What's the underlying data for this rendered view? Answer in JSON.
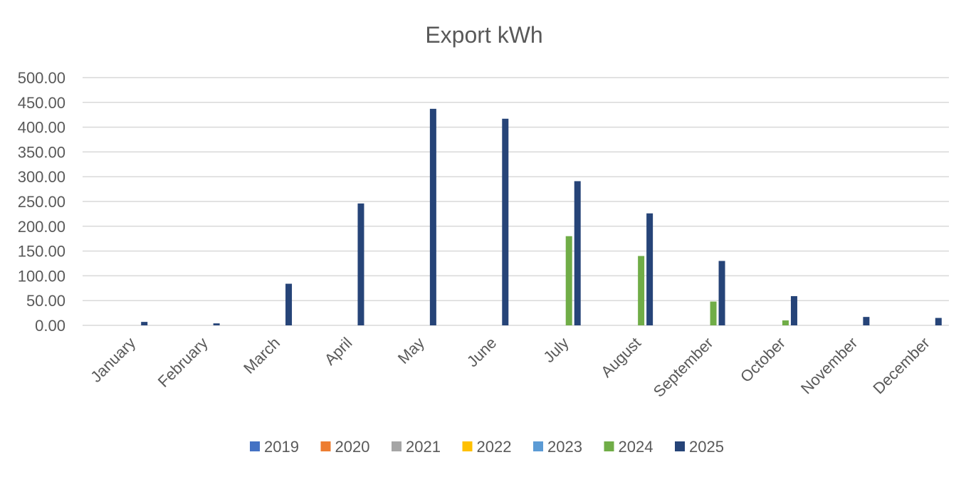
{
  "chart_data": {
    "type": "bar",
    "title": "Export kWh",
    "xlabel": "",
    "ylabel": "",
    "ylim": [
      0,
      500
    ],
    "yticks": [
      "0.00",
      "50.00",
      "100.00",
      "150.00",
      "200.00",
      "250.00",
      "300.00",
      "350.00",
      "400.00",
      "450.00",
      "500.00"
    ],
    "categories": [
      "January",
      "February",
      "March",
      "April",
      "May",
      "June",
      "July",
      "August",
      "September",
      "October",
      "November",
      "December"
    ],
    "legend_position": "bottom",
    "grid": true,
    "series": [
      {
        "name": "2019",
        "color": "#4472C4",
        "values": [
          0,
          0,
          0,
          0,
          0,
          0,
          0,
          0,
          0,
          0,
          0,
          0
        ]
      },
      {
        "name": "2020",
        "color": "#ED7D31",
        "values": [
          0,
          0,
          0,
          0,
          0,
          0,
          0,
          0,
          0,
          0,
          0,
          0
        ]
      },
      {
        "name": "2021",
        "color": "#A5A5A5",
        "values": [
          0,
          0,
          0,
          0,
          0,
          0,
          0,
          0,
          0,
          0,
          0,
          0
        ]
      },
      {
        "name": "2022",
        "color": "#FFC000",
        "values": [
          0,
          0,
          0,
          0,
          0,
          0,
          0,
          0,
          0,
          0,
          0,
          0
        ]
      },
      {
        "name": "2023",
        "color": "#5B9BD5",
        "values": [
          0,
          0,
          0,
          0,
          0,
          0,
          0,
          0,
          0,
          0,
          0,
          0
        ]
      },
      {
        "name": "2024",
        "color": "#70AD47",
        "values": [
          0,
          0,
          0,
          0,
          0,
          0,
          180,
          140,
          48,
          10,
          0,
          0
        ]
      },
      {
        "name": "2025",
        "color": "#264478",
        "values": [
          7,
          4,
          84,
          246,
          437,
          417,
          291,
          226,
          130,
          59,
          17,
          15
        ]
      }
    ]
  }
}
